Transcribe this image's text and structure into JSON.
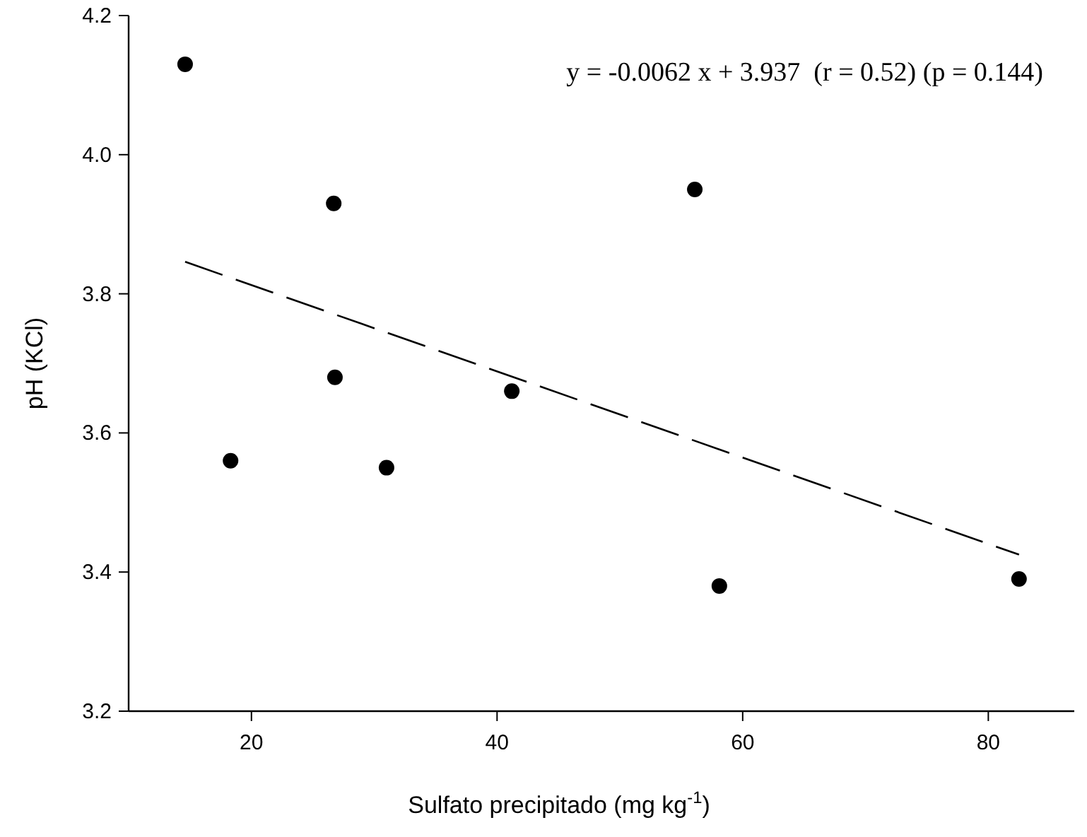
{
  "chart_data": {
    "type": "scatter",
    "xlabel": "Sulfato precipitado (mg kg$^{-1}$)",
    "ylabel": "pH (KCl)",
    "xlim": [
      10,
      87
    ],
    "xticks": [
      20,
      40,
      60,
      80
    ],
    "ylim": [
      3.2,
      4.2
    ],
    "yticks": [
      {
        "value": 3.2,
        "label": "3.2"
      },
      {
        "value": 3.4,
        "label": "3.4"
      },
      {
        "value": 3.6,
        "label": "3.6"
      },
      {
        "value": 3.8,
        "label": "3.8"
      },
      {
        "value": 4.0,
        "label": "4.0"
      },
      {
        "value": 4.2,
        "label": "4.2"
      }
    ],
    "grid": false,
    "legend": false,
    "marker": "circle",
    "annotations": [
      "y = -0.0062 x + 3.937  (r = 0.52) (p = 0.144)"
    ],
    "series": [
      {
        "color": "#000000",
        "x": [
          14.6,
          26.7,
          56.1,
          26.8,
          41.2,
          18.3,
          31.0,
          58.1,
          82.5
        ],
        "values": [
          4.13,
          3.93,
          3.95,
          3.68,
          3.66,
          3.56,
          3.55,
          3.38,
          3.39
        ]
      },
      {
        "type": "line",
        "color": "#000000",
        "line_style": "dashed",
        "marker": "none",
        "x": [
          14.6,
          82.5
        ],
        "values": [
          3.846,
          3.425
        ]
      }
    ]
  }
}
